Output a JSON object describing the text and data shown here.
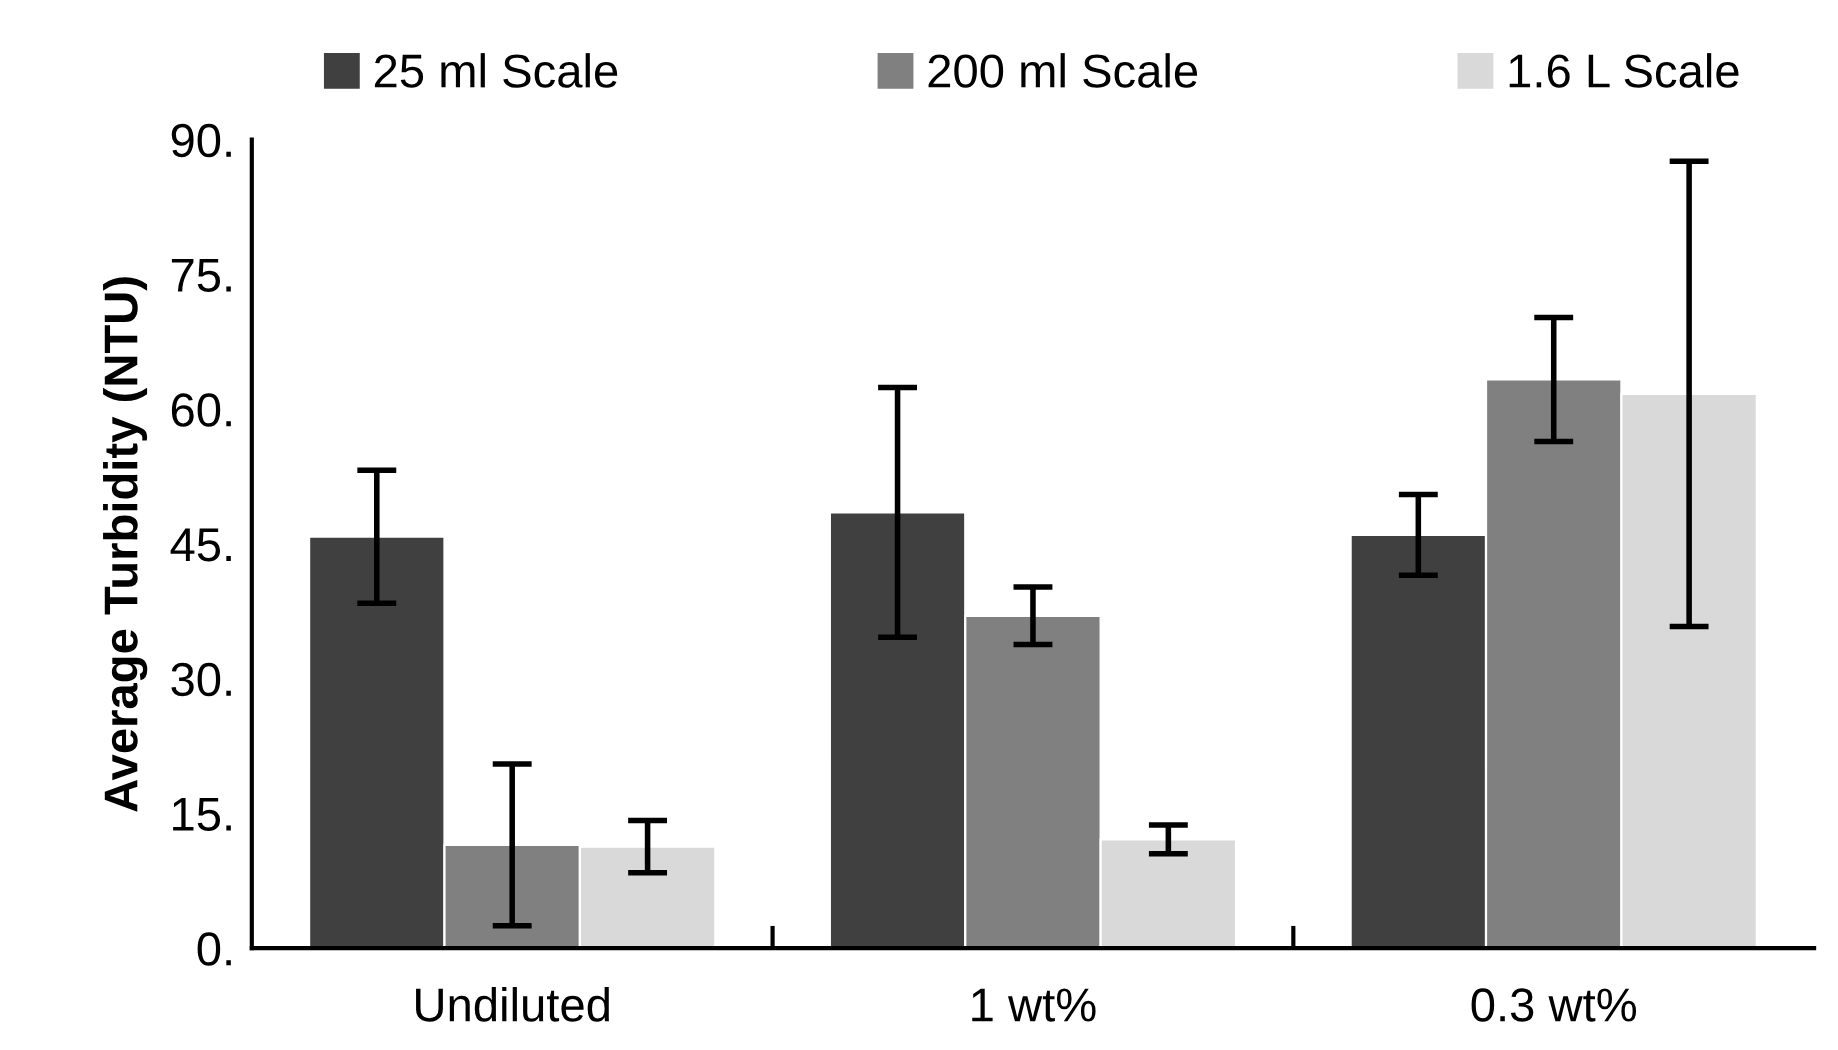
{
  "chart_data": {
    "type": "bar",
    "ylabel": "Average Turbidity (NTU)",
    "categories": [
      "Undiluted",
      "1 wt%",
      "0.3 wt%"
    ],
    "series": [
      {
        "name": "25 ml Scale",
        "color": "#404040",
        "values": [
          45.8,
          48.5,
          46.0
        ],
        "errors": [
          7.4,
          13.9,
          4.5
        ]
      },
      {
        "name": "200 ml Scale",
        "color": "#808080",
        "values": [
          11.5,
          37.0,
          63.3
        ],
        "errors": [
          9.0,
          3.2,
          6.9
        ]
      },
      {
        "name": "1.6 L Scale",
        "color": "#d9d9d9",
        "values": [
          11.3,
          12.1,
          61.7
        ],
        "errors": [
          2.9,
          1.6,
          25.9
        ]
      }
    ],
    "ylim": [
      0,
      90
    ],
    "yticks": [
      {
        "value": 0,
        "label": "0."
      },
      {
        "value": 15,
        "label": "15."
      },
      {
        "value": 30,
        "label": "30."
      },
      {
        "value": 45,
        "label": "45."
      },
      {
        "value": 60,
        "label": "60."
      },
      {
        "value": 75,
        "label": "75."
      },
      {
        "value": 90,
        "label": "90."
      }
    ],
    "grid": false,
    "legend": "top"
  }
}
